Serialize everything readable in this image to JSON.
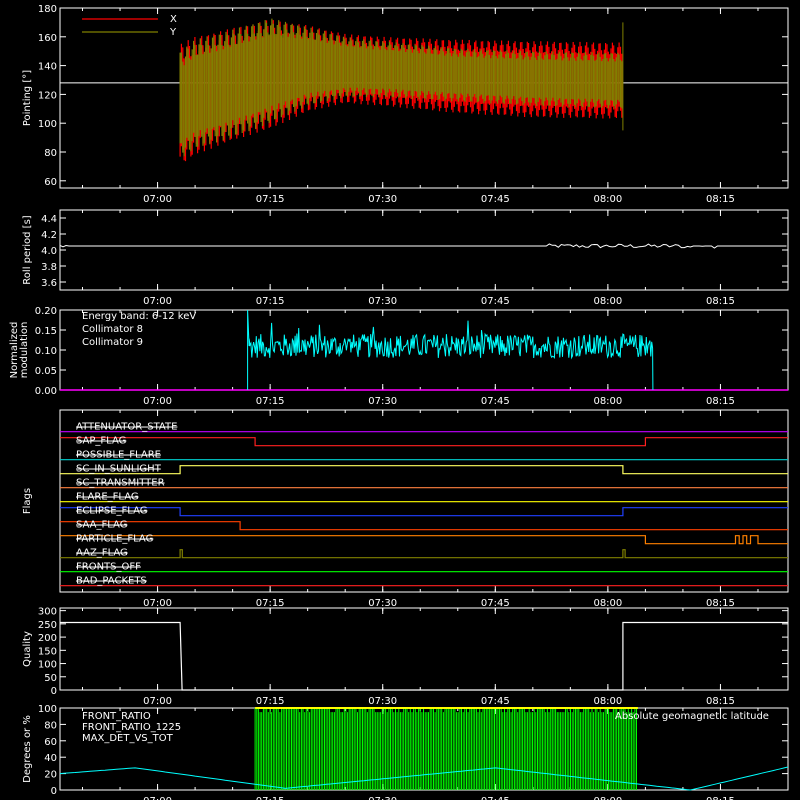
{
  "time_ticks": [
    "07:00",
    "07:15",
    "07:30",
    "07:45",
    "08:00",
    "08:15"
  ],
  "chart_data": [
    {
      "type": "line",
      "ylabel": "Pointing [°]",
      "ylim": [
        55,
        180
      ],
      "yticks": [
        "60",
        "80",
        "100",
        "120",
        "140",
        "160",
        "180"
      ],
      "reference_level": 128,
      "data_span": [
        "07:03",
        "08:02"
      ],
      "legend": [
        {
          "name": "X",
          "color": "#ff0000"
        },
        {
          "name": "Y",
          "color": "#808000"
        }
      ],
      "series": [
        {
          "name": "X",
          "color": "#ff0000",
          "time": [
            "07:03",
            "07:05",
            "07:10",
            "07:15",
            "07:20",
            "07:25",
            "07:30",
            "07:40",
            "07:50",
            "08:02"
          ],
          "upper": [
            155,
            160,
            166,
            172,
            168,
            162,
            160,
            158,
            157,
            156
          ],
          "lower": [
            70,
            78,
            88,
            96,
            108,
            114,
            112,
            107,
            104,
            103
          ]
        },
        {
          "name": "Y",
          "color": "#808000",
          "time": [
            "07:03",
            "07:05",
            "07:10",
            "07:15",
            "07:20",
            "07:25",
            "07:30",
            "07:40",
            "07:50",
            "08:02"
          ],
          "upper": [
            150,
            158,
            165,
            173,
            167,
            160,
            157,
            152,
            150,
            149
          ],
          "lower": [
            75,
            82,
            90,
            100,
            112,
            118,
            118,
            115,
            112,
            110
          ]
        }
      ]
    },
    {
      "type": "line",
      "ylabel": "Roll period [s]",
      "ylim": [
        3.5,
        4.5
      ],
      "yticks": [
        "3.6",
        "3.8",
        "4.0",
        "4.2",
        "4.4"
      ],
      "series": [
        {
          "name": "",
          "color": "#ffffff",
          "time": [
            "06:47",
            "08:24"
          ],
          "values": [
            4.05,
            4.05
          ]
        }
      ]
    },
    {
      "type": "line",
      "ylabel": "Normalized modulation",
      "ylim": [
        0,
        0.2
      ],
      "yticks": [
        "0.00",
        "0.05",
        "0.10",
        "0.15",
        "0.20"
      ],
      "annotation": "Energy band: 6-12 keV",
      "legend": [
        {
          "name": "Collimator 8",
          "color": "#00ffff"
        },
        {
          "name": "Collimator 9",
          "color": "#ff00ff"
        }
      ],
      "series": [
        {
          "name": "Collimator 8",
          "color": "#00ffff",
          "time": [
            "07:12",
            "08:06"
          ],
          "mean": 0.11,
          "spread": 0.03
        },
        {
          "name": "Collimator 9",
          "color": "#ff00ff",
          "time": [
            "06:47",
            "08:24"
          ],
          "values": [
            0.0,
            0.0
          ]
        }
      ]
    },
    {
      "type": "line",
      "ylabel": "Flags",
      "flags": [
        {
          "name": "ATTENUATOR_STATE",
          "color": "#c000ff",
          "changes": []
        },
        {
          "name": "SAP_FLAG",
          "color": "#ff2020",
          "changes": [
            [
              "07:13",
              0
            ],
            [
              "08:05",
              1
            ]
          ]
        },
        {
          "name": "POSSIBLE_FLARE",
          "color": "#00d0d0",
          "changes": []
        },
        {
          "name": "SC_IN_SUNLIGHT",
          "color": "#ffff60",
          "changes": [
            [
              "07:03",
              1
            ],
            [
              "08:02",
              0
            ]
          ]
        },
        {
          "name": "SC_TRANSMITTER",
          "color": "#ff8040",
          "changes": []
        },
        {
          "name": "FLARE_FLAG",
          "color": "#ffff00",
          "changes": []
        },
        {
          "name": "ECLIPSE_FLAG",
          "color": "#2040ff",
          "changes": [
            [
              "07:03",
              0
            ],
            [
              "08:02",
              1
            ]
          ]
        },
        {
          "name": "SAA_FLAG",
          "color": "#ff4000",
          "changes": [
            [
              "07:11",
              0
            ]
          ]
        },
        {
          "name": "PARTICLE_FLAG",
          "color": "#ff8000",
          "changes": [
            [
              "08:05",
              0
            ],
            [
              "08:17",
              1
            ],
            [
              "08:17.5",
              0
            ],
            [
              "08:18",
              1
            ],
            [
              "08:18.5",
              0
            ],
            [
              "08:19",
              1
            ],
            [
              "08:20",
              0
            ]
          ]
        },
        {
          "name": "AAZ_FLAG",
          "color": "#808000",
          "changes": [
            [
              "07:03",
              1
            ],
            [
              "07:03.3",
              0
            ],
            [
              "08:02",
              1
            ],
            [
              "08:02.3",
              0
            ]
          ]
        },
        {
          "name": "FRONTS_OFF",
          "color": "#00ff00",
          "changes": []
        },
        {
          "name": "BAD_PACKETS",
          "color": "#ff2020",
          "changes": []
        }
      ]
    },
    {
      "type": "line",
      "ylabel": "Quality",
      "ylim": [
        0,
        310
      ],
      "yticks": [
        "0",
        "50",
        "100",
        "150",
        "200",
        "250",
        "300"
      ],
      "series": [
        {
          "name": "",
          "color": "#ffffff",
          "time": [
            "06:47",
            "07:03",
            "07:03",
            "08:02",
            "08:02",
            "08:24"
          ],
          "values": [
            255,
            255,
            0,
            0,
            255,
            255
          ]
        }
      ]
    },
    {
      "type": "line",
      "ylabel": "Degrees or %",
      "ylim": [
        0,
        100
      ],
      "yticks": [
        "0",
        "20",
        "40",
        "60",
        "80",
        "100"
      ],
      "legend": [
        {
          "name": "FRONT_RATIO",
          "color": "#ffff00"
        },
        {
          "name": "FRONT_RATIO_1225",
          "color": "#00ff00"
        },
        {
          "name": "MAX_DET_VS_TOT",
          "color": "#ff8040"
        }
      ],
      "annotation": "Absolute geomagnetic latitude",
      "annotation_color": "#00ffff",
      "series": [
        {
          "name": "FRONT_RATIO_1225",
          "color": "#00ff00",
          "time": [
            "07:13",
            "08:04"
          ],
          "range": [
            0,
            100
          ]
        },
        {
          "name": "FRONT_RATIO",
          "color": "#ffff00",
          "time": [
            "07:13",
            "08:04"
          ],
          "values": [
            100,
            100
          ]
        },
        {
          "name": "Absolute geomagnetic latitude",
          "color": "#00ffff",
          "time": [
            "06:47",
            "06:57",
            "07:17",
            "07:45",
            "08:11",
            "08:24"
          ],
          "values": [
            20,
            27,
            2,
            27,
            0,
            28
          ]
        }
      ]
    }
  ]
}
